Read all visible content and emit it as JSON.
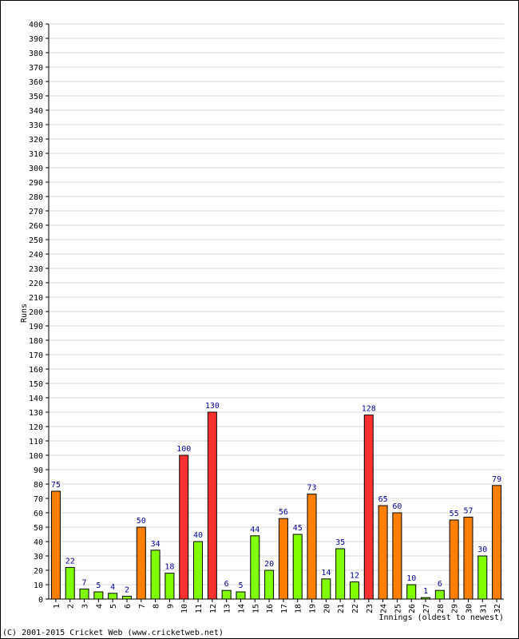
{
  "chart_data": {
    "type": "bar",
    "ylabel": "Runs",
    "xlabel": "Innings (oldest to newest)",
    "ylim": [
      0,
      400
    ],
    "y_ticks": [
      0,
      10,
      20,
      30,
      40,
      50,
      60,
      70,
      80,
      90,
      100,
      110,
      120,
      130,
      140,
      150,
      160,
      170,
      180,
      190,
      200,
      210,
      220,
      230,
      240,
      250,
      260,
      270,
      280,
      290,
      300,
      310,
      320,
      330,
      340,
      350,
      360,
      370,
      380,
      390,
      400
    ],
    "grid": true,
    "categories": [
      "1",
      "2",
      "3",
      "4",
      "5",
      "6",
      "7",
      "8",
      "9",
      "10",
      "11",
      "12",
      "13",
      "14",
      "15",
      "16",
      "17",
      "18",
      "19",
      "20",
      "21",
      "22",
      "23",
      "24",
      "25",
      "26",
      "27",
      "28",
      "29",
      "30",
      "31",
      "32"
    ],
    "values": [
      75,
      22,
      7,
      5,
      4,
      2,
      50,
      34,
      18,
      100,
      40,
      130,
      6,
      5,
      44,
      20,
      56,
      45,
      73,
      14,
      35,
      12,
      128,
      65,
      60,
      10,
      1,
      6,
      55,
      57,
      30,
      79
    ],
    "colors": {
      "under_50": "#80ff00",
      "fifty": "#ff8000",
      "hundred": "#ff3030",
      "value_label": "#000099"
    }
  },
  "footer": "(C) 2001-2015 Cricket Web (www.cricketweb.net)"
}
